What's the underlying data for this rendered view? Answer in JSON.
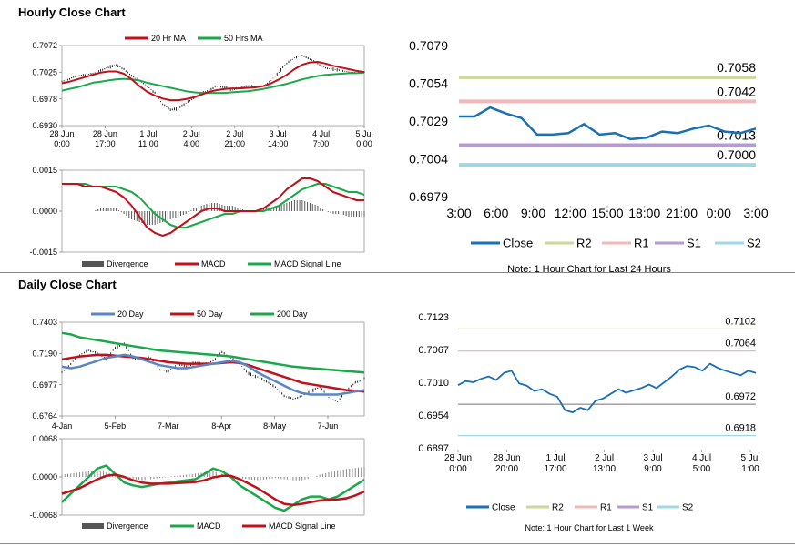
{
  "sections": {
    "hourly_title": "Hourly Close Chart",
    "daily_title": "Daily Close Chart"
  },
  "colors": {
    "ma_short": "#c0111a",
    "ma_long": "#1aa84a",
    "ma_200": "#1aa84a",
    "ma_20day": "#5b86c6",
    "divergence": "#555555",
    "close": "#1a6fb5",
    "r2": "#c9d99a",
    "r1": "#f0b8b8",
    "s1": "#b79ad0",
    "s2": "#9fd8e0"
  },
  "chart_data": [
    {
      "id": "hourly_price",
      "type": "line",
      "legend": [
        "20 Hr MA",
        "50 Hrs MA"
      ],
      "ylim": [
        0.693,
        0.7072
      ],
      "yticks": [
        "0.7072",
        "0.7025",
        "0.6978",
        "0.6930"
      ],
      "xticks": [
        [
          "28 Jun",
          "0:00"
        ],
        [
          "28 Jun",
          "17:00"
        ],
        [
          "1 Jul",
          "11:00"
        ],
        [
          "2 Jul",
          "4:00"
        ],
        [
          "2 Jul",
          "21:00"
        ],
        [
          "3 Jul",
          "14:00"
        ],
        [
          "4 Jul",
          "7:00"
        ],
        [
          "5 Jul",
          "0:00"
        ]
      ],
      "price_series": [
        0.7008,
        0.7013,
        0.7018,
        0.702,
        0.7022,
        0.7028,
        0.7033,
        0.7038,
        0.703,
        0.7018,
        0.701,
        0.7,
        0.6988,
        0.6968,
        0.6958,
        0.696,
        0.697,
        0.6978,
        0.6988,
        0.6993,
        0.7,
        0.6998,
        0.6993,
        0.6998,
        0.7,
        0.6998,
        0.7,
        0.701,
        0.7025,
        0.704,
        0.705,
        0.7055,
        0.7048,
        0.704,
        0.7032,
        0.703,
        0.7028,
        0.7025,
        0.7023,
        0.7025
      ],
      "series": [
        {
          "name": "20 Hr MA",
          "values": [
            0.7005,
            0.7008,
            0.7012,
            0.7016,
            0.702,
            0.7024,
            0.7026,
            0.7026,
            0.7022,
            0.7012,
            0.7,
            0.699,
            0.6983,
            0.6978,
            0.6975,
            0.6975,
            0.6977,
            0.698,
            0.6985,
            0.699,
            0.6993,
            0.6995,
            0.6996,
            0.6996,
            0.6997,
            0.6998,
            0.7,
            0.7005,
            0.7012,
            0.702,
            0.703,
            0.7038,
            0.7042,
            0.7043,
            0.704,
            0.7036,
            0.7033,
            0.703,
            0.7027,
            0.7025
          ]
        },
        {
          "name": "50 Hrs MA",
          "values": [
            0.6992,
            0.6995,
            0.6998,
            0.7002,
            0.7006,
            0.7008,
            0.701,
            0.7012,
            0.7013,
            0.7012,
            0.701,
            0.7006,
            0.7003,
            0.7,
            0.6997,
            0.6994,
            0.6991,
            0.6989,
            0.6988,
            0.6988,
            0.6988,
            0.6988,
            0.6989,
            0.699,
            0.6991,
            0.6993,
            0.6995,
            0.6998,
            0.7001,
            0.7004,
            0.7008,
            0.7012,
            0.7015,
            0.7018,
            0.702,
            0.7021,
            0.7022,
            0.7023,
            0.7023,
            0.7024
          ]
        }
      ]
    },
    {
      "id": "hourly_macd",
      "type": "line",
      "ylim": [
        -0.0015,
        0.0015
      ],
      "yticks": [
        "0.0015",
        "0.0000",
        "-0.0015"
      ],
      "legend": [
        "Divergence",
        "MACD",
        "MACD Signal Line"
      ],
      "series": [
        {
          "name": "Divergence",
          "values": [
            0.0,
            0.0,
            0.0,
            0.0,
            0.0,
            0.0001,
            0.0001,
            0.0001,
            -0.0001,
            -0.0003,
            -0.0004,
            -0.0005,
            -0.0005,
            -0.0004,
            -0.0003,
            -0.0002,
            -0.0001,
            0.0001,
            0.0002,
            0.0003,
            0.0003,
            0.0002,
            0.0002,
            0.0001,
            0.0,
            0.0,
            0.0001,
            0.0001,
            0.0002,
            0.0003,
            0.0004,
            0.0004,
            0.0003,
            0.0002,
            0.0,
            -0.0001,
            -0.0001,
            -0.0002,
            -0.0002,
            -0.0002
          ]
        },
        {
          "name": "MACD",
          "values": [
            0.001,
            0.001,
            0.001,
            0.0009,
            0.0009,
            0.0009,
            0.0008,
            0.0007,
            0.0005,
            0.0002,
            -0.0002,
            -0.0006,
            -0.0008,
            -0.0009,
            -0.0008,
            -0.0006,
            -0.0004,
            -0.0002,
            0.0,
            0.0001,
            0.0001,
            0.0,
            0.0,
            0.0,
            0.0,
            0.0,
            0.0001,
            0.0003,
            0.0005,
            0.0008,
            0.001,
            0.0012,
            0.0012,
            0.0011,
            0.0009,
            0.0007,
            0.0006,
            0.0005,
            0.0004,
            0.0004
          ]
        },
        {
          "name": "MACD Signal Line",
          "values": [
            0.001,
            0.001,
            0.001,
            0.001,
            0.0009,
            0.0009,
            0.0009,
            0.0009,
            0.0008,
            0.0007,
            0.0005,
            0.0002,
            -0.0001,
            -0.0003,
            -0.0005,
            -0.0006,
            -0.0006,
            -0.0005,
            -0.0004,
            -0.0003,
            -0.0002,
            -0.0001,
            -0.0001,
            0.0,
            0.0,
            0.0,
            0.0,
            0.0001,
            0.0002,
            0.0004,
            0.0006,
            0.0008,
            0.0009,
            0.001,
            0.001,
            0.0009,
            0.0008,
            0.0007,
            0.0007,
            0.0006
          ]
        }
      ]
    },
    {
      "id": "hourly_pivot",
      "type": "line",
      "ylim": [
        0.6979,
        0.7079
      ],
      "yticks": [
        "0.7079",
        "0.7054",
        "0.7029",
        "0.7004",
        "0.6979"
      ],
      "xticks": [
        "3:00",
        "6:00",
        "9:00",
        "12:00",
        "15:00",
        "18:00",
        "21:00",
        "0:00",
        "3:00"
      ],
      "levels": [
        {
          "name": "R2",
          "value": 0.7058,
          "label": "0.7058"
        },
        {
          "name": "R1",
          "value": 0.7042,
          "label": "0.7042"
        },
        {
          "name": "S1",
          "value": 0.7013,
          "label": "0.7013"
        },
        {
          "name": "S2",
          "value": 0.7,
          "label": "0.7000"
        }
      ],
      "legend": [
        "Close",
        "R2",
        "R1",
        "S1",
        "S2"
      ],
      "close": [
        0.7032,
        0.7032,
        0.7038,
        0.7034,
        0.7031,
        0.702,
        0.702,
        0.7021,
        0.7027,
        0.702,
        0.7021,
        0.7017,
        0.7018,
        0.7022,
        0.7021,
        0.7024,
        0.7026,
        0.7022,
        0.7021,
        0.7024
      ],
      "note": "Note: 1 Hour Chart for Last 24 Hours"
    },
    {
      "id": "daily_price",
      "type": "line",
      "ylim": [
        0.6764,
        0.7403
      ],
      "yticks": [
        "0.7403",
        "0.7190",
        "0.6977",
        "0.6764"
      ],
      "xticks": [
        "4-Jan",
        "5-Feb",
        "7-Mar",
        "8-Apr",
        "8-May",
        "7-Jun"
      ],
      "legend": [
        "20 Day",
        "50 Day",
        "200 Day"
      ],
      "price_series": [
        0.706,
        0.712,
        0.718,
        0.721,
        0.719,
        0.715,
        0.723,
        0.726,
        0.716,
        0.715,
        0.716,
        0.708,
        0.707,
        0.712,
        0.71,
        0.713,
        0.711,
        0.714,
        0.72,
        0.716,
        0.712,
        0.705,
        0.703,
        0.7,
        0.696,
        0.69,
        0.688,
        0.69,
        0.693,
        0.696,
        0.689,
        0.686,
        0.694,
        0.699,
        0.702
      ],
      "series": [
        {
          "name": "20 Day",
          "values": [
            0.71,
            0.709,
            0.71,
            0.712,
            0.714,
            0.716,
            0.717,
            0.718,
            0.717,
            0.715,
            0.713,
            0.711,
            0.71,
            0.709,
            0.709,
            0.71,
            0.711,
            0.712,
            0.713,
            0.714,
            0.713,
            0.71,
            0.706,
            0.703,
            0.7,
            0.697,
            0.694,
            0.692,
            0.691,
            0.691,
            0.691,
            0.691,
            0.692,
            0.693,
            0.694
          ]
        },
        {
          "name": "50 Day",
          "values": [
            0.715,
            0.716,
            0.717,
            0.7175,
            0.718,
            0.718,
            0.7175,
            0.717,
            0.7165,
            0.716,
            0.715,
            0.714,
            0.713,
            0.7125,
            0.712,
            0.712,
            0.712,
            0.712,
            0.7125,
            0.713,
            0.7125,
            0.711,
            0.709,
            0.707,
            0.705,
            0.703,
            0.701,
            0.699,
            0.698,
            0.697,
            0.696,
            0.695,
            0.694,
            0.6935,
            0.693
          ]
        },
        {
          "name": "200 Day",
          "values": [
            0.733,
            0.732,
            0.73,
            0.729,
            0.728,
            0.727,
            0.726,
            0.725,
            0.724,
            0.723,
            0.722,
            0.721,
            0.7205,
            0.72,
            0.7195,
            0.719,
            0.7185,
            0.718,
            0.7175,
            0.717,
            0.716,
            0.715,
            0.714,
            0.713,
            0.712,
            0.711,
            0.71,
            0.7095,
            0.709,
            0.7085,
            0.708,
            0.7075,
            0.707,
            0.7065,
            0.706
          ]
        }
      ]
    },
    {
      "id": "daily_macd",
      "type": "line",
      "ylim": [
        -0.0068,
        0.0068
      ],
      "yticks": [
        "0.0068",
        "0.0000",
        "-0.0068"
      ],
      "legend": [
        "Divergence",
        "MACD",
        "MACD Signal Line"
      ],
      "series": [
        {
          "name": "Divergence",
          "values": [
            0.0004,
            0.0006,
            0.0008,
            0.001,
            0.0012,
            0.0008,
            0.0004,
            0.0,
            -0.0004,
            -0.0006,
            -0.0004,
            -0.0002,
            0.0,
            0.0002,
            0.0004,
            0.0006,
            0.0008,
            0.001,
            0.0006,
            0.0002,
            -0.0002,
            -0.0004,
            -0.0006,
            -0.0004,
            -0.0002,
            -0.0004,
            -0.0006,
            -0.0006,
            -0.0002,
            0.0004,
            0.0008,
            0.0012,
            0.0014,
            0.0016,
            0.0018
          ]
        },
        {
          "name": "MACD",
          "values": [
            -0.0045,
            -0.003,
            -0.0015,
            0.0,
            0.0015,
            0.002,
            0.0005,
            -0.001,
            -0.0015,
            -0.0018,
            -0.0015,
            -0.0012,
            -0.001,
            -0.0008,
            -0.0006,
            -0.0004,
            0.0005,
            0.0015,
            0.001,
            0.0,
            -0.0015,
            -0.0025,
            -0.0035,
            -0.0045,
            -0.0055,
            -0.006,
            -0.005,
            -0.004,
            -0.0035,
            -0.0035,
            -0.004,
            -0.0035,
            -0.0025,
            -0.0015,
            -0.0005
          ]
        },
        {
          "name": "MACD Signal Line",
          "values": [
            -0.003,
            -0.0025,
            -0.002,
            -0.0012,
            -0.0004,
            0.0002,
            0.0004,
            0.0,
            -0.0006,
            -0.001,
            -0.0012,
            -0.0012,
            -0.0012,
            -0.0011,
            -0.001,
            -0.0009,
            -0.0006,
            -0.0001,
            0.0002,
            0.0002,
            -0.0004,
            -0.0012,
            -0.002,
            -0.003,
            -0.004,
            -0.0048,
            -0.005,
            -0.0048,
            -0.0045,
            -0.0042,
            -0.0041,
            -0.004,
            -0.0038,
            -0.0033,
            -0.0026
          ]
        }
      ]
    },
    {
      "id": "daily_pivot",
      "type": "line",
      "ylim": [
        0.6897,
        0.7123
      ],
      "yticks": [
        "0.7123",
        "0.7067",
        "0.7010",
        "0.6954",
        "0.6897"
      ],
      "xticks": [
        [
          "28 Jun",
          "0:00"
        ],
        [
          "28 Jun",
          "20:00"
        ],
        [
          "1 Jul",
          "17:00"
        ],
        [
          "2 Jul",
          "13:00"
        ],
        [
          "3 Jul",
          "9:00"
        ],
        [
          "4 Jul",
          "5:00"
        ],
        [
          "5 Jul",
          "1:00"
        ]
      ],
      "levels": [
        {
          "name": "R2",
          "value": 0.7102,
          "label": "0.7102"
        },
        {
          "name": "R1",
          "value": 0.7064,
          "label": "0.7064"
        },
        {
          "name": "S1",
          "value": 0.6972,
          "label": "0.6972"
        },
        {
          "name": "S2",
          "value": 0.6918,
          "label": "0.6918"
        }
      ],
      "legend": [
        "Close",
        "R2",
        "R1",
        "S1",
        "S2"
      ],
      "close": [
        0.7005,
        0.7012,
        0.701,
        0.7016,
        0.702,
        0.7014,
        0.7026,
        0.703,
        0.7008,
        0.7004,
        0.6995,
        0.6998,
        0.699,
        0.6985,
        0.6962,
        0.6958,
        0.6966,
        0.6962,
        0.6978,
        0.6982,
        0.699,
        0.6998,
        0.6992,
        0.6996,
        0.7,
        0.7006,
        0.7,
        0.701,
        0.702,
        0.7032,
        0.7038,
        0.7036,
        0.703,
        0.7042,
        0.7035,
        0.703,
        0.7026,
        0.7022,
        0.703,
        0.7026
      ],
      "note": "Note: 1 Hour Chart for Last 1 Week"
    }
  ]
}
